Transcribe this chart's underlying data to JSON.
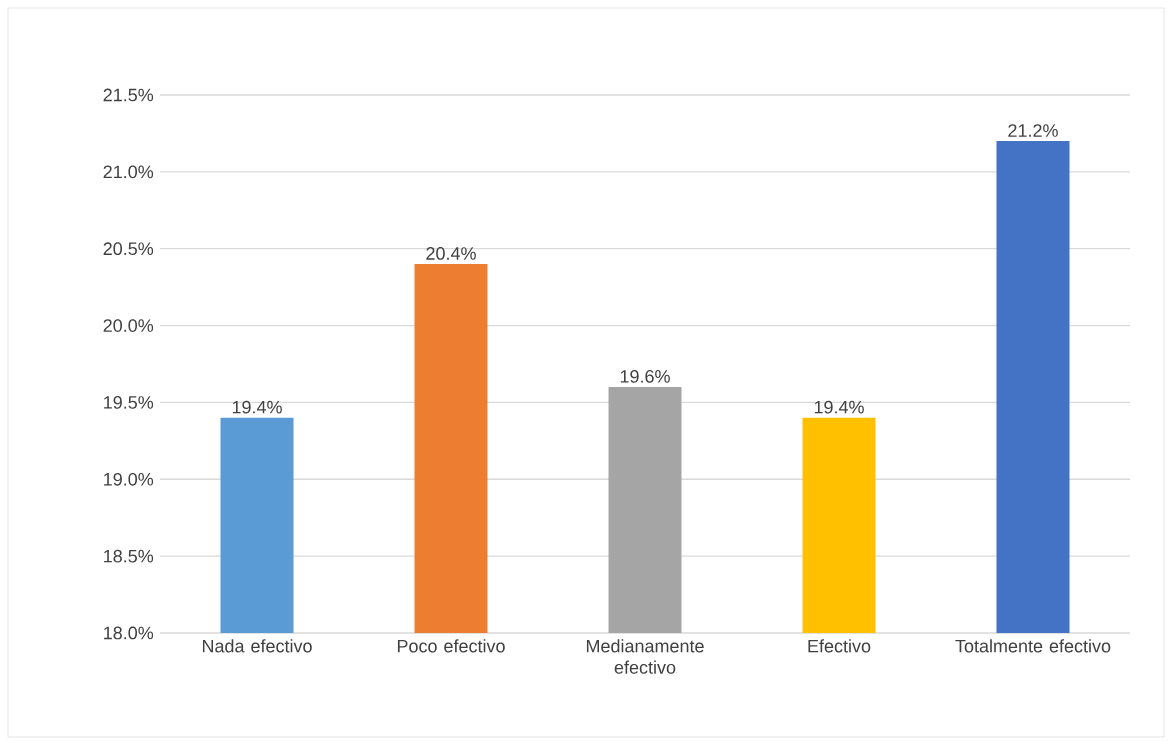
{
  "chart_data": {
    "type": "bar",
    "categories": [
      "Nada efectivo",
      "Poco efectivo",
      "Medianamente efectivo",
      "Efectivo",
      "Totalmente efectivo"
    ],
    "values": [
      19.4,
      20.4,
      19.6,
      19.4,
      21.2
    ],
    "colors": [
      "#5b9bd5",
      "#ed7d31",
      "#a5a5a5",
      "#ffc000",
      "#4472c4"
    ],
    "value_labels": [
      "19.4%",
      "20.4%",
      "19.6%",
      "19.4%",
      "21.2%"
    ],
    "ylim": [
      18,
      21.5
    ],
    "yticks": [
      {
        "value": 18,
        "label": "18.0%"
      },
      {
        "value": 18.5,
        "label": "18.5%"
      },
      {
        "value": 19,
        "label": "19.0%"
      },
      {
        "value": 19.5,
        "label": "19.5%"
      },
      {
        "value": 20,
        "label": "20.0%"
      },
      {
        "value": 20.5,
        "label": "20.5%"
      },
      {
        "value": 21,
        "label": "21.0%"
      },
      {
        "value": 21.5,
        "label": "21.5%"
      }
    ],
    "grid": "y"
  }
}
